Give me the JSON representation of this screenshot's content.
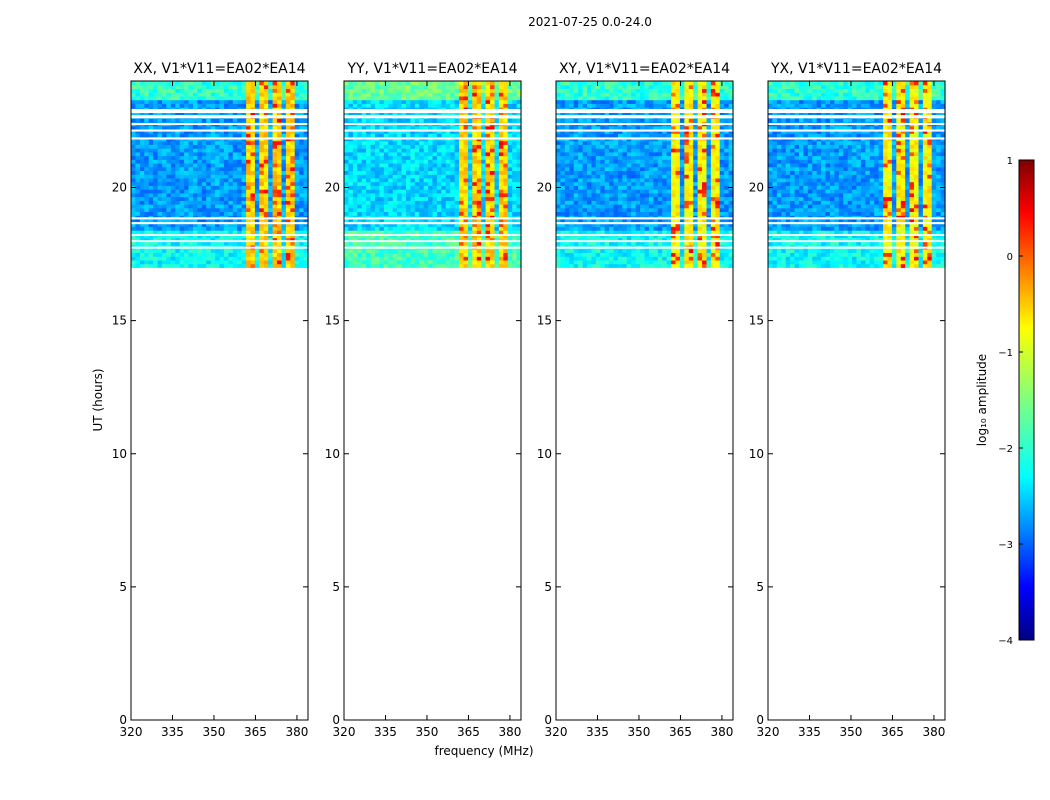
{
  "chart_data": {
    "type": "heatmap",
    "suptitle": "2021-07-25 0.0-24.0",
    "xlabel": "frequency (MHz)",
    "ylabel": "UT (hours)",
    "xlim": [
      320,
      384
    ],
    "ylim": [
      0,
      24
    ],
    "xticks": [
      320,
      335,
      350,
      365,
      380
    ],
    "yticks": [
      0,
      5,
      10,
      15,
      20
    ],
    "data_time_range": [
      17.0,
      24.0
    ],
    "blank_time_bands": [
      [
        17.7,
        17.78
      ],
      [
        17.95,
        18.02
      ],
      [
        18.18,
        18.25
      ],
      [
        18.62,
        18.7
      ],
      [
        18.8,
        18.88
      ],
      [
        21.8,
        21.88
      ],
      [
        22.1,
        22.18
      ],
      [
        22.35,
        22.42
      ],
      [
        22.6,
        22.72
      ],
      [
        22.8,
        22.95
      ]
    ],
    "rfi_frequency_channels_mhz": [
      [
        361,
        365
      ],
      [
        366,
        370
      ],
      [
        371,
        375
      ],
      [
        376,
        380
      ]
    ],
    "panels": [
      {
        "title": "XX, V1*V11=EA02*EA14"
      },
      {
        "title": "YY, V1*V11=EA02*EA14"
      },
      {
        "title": "XY, V1*V11=EA02*EA14"
      },
      {
        "title": "YX, V1*V11=EA02*EA14"
      }
    ],
    "colorbar": {
      "label": "log₁₀ amplitude",
      "range": [
        -4,
        1
      ],
      "ticks": [
        "1",
        "0",
        "−1",
        "−2",
        "−3",
        "−4"
      ],
      "colormap": [
        "#00007f",
        "#0000ff",
        "#007fff",
        "#00ffff",
        "#7fff7f",
        "#ffff00",
        "#ff7f00",
        "#ff0000",
        "#7f0000"
      ]
    }
  }
}
